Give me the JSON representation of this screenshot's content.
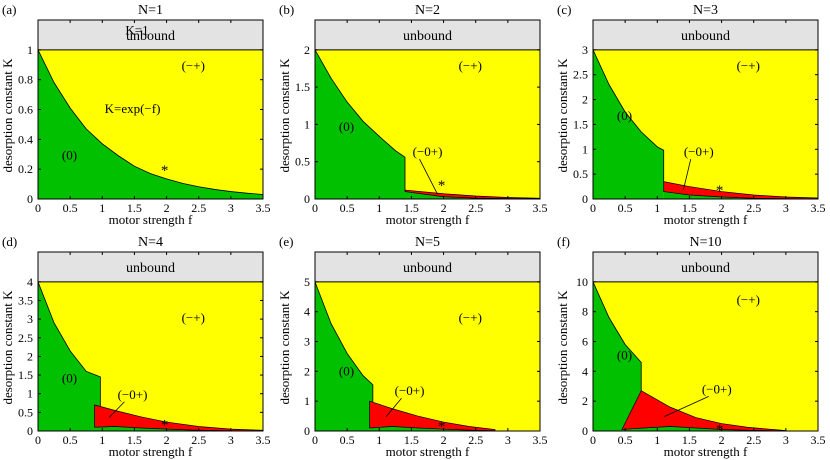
{
  "colors": {
    "unbound": "#e3e3e3",
    "minus_plus": "#ffff00",
    "zero": "#00c000",
    "minus_zero_plus": "#ff0000",
    "boundary": "#000000"
  },
  "chart_data": [
    {
      "type": "area",
      "panel_label": "(a)",
      "title": "N=1",
      "xlabel": "motor strength f",
      "ylabel": "desorption constant K",
      "xlim": [
        0,
        3.5
      ],
      "ylim": [
        0,
        1.2
      ],
      "xticks": [
        "0",
        "0.5",
        "1",
        "1.5",
        "2",
        "2.5",
        "3",
        "3.5"
      ],
      "yticks": [
        "0",
        "0.2",
        "0.4",
        "0.6",
        "0.8",
        "1"
      ],
      "ytick_values": [
        0,
        0.2,
        0.4,
        0.6,
        0.8,
        1
      ],
      "regions": [
        {
          "label": "unbound",
          "K_lower": 1
        },
        {
          "label": "(−+)"
        },
        {
          "label": "(0)",
          "boundary_f": [
            0,
            0.25,
            0.5,
            0.75,
            1,
            1.25,
            1.5,
            1.75,
            2,
            2.25,
            2.5,
            2.75,
            3,
            3.25,
            3.5
          ],
          "boundary_K": [
            1,
            0.78,
            0.61,
            0.47,
            0.37,
            0.29,
            0.22,
            0.17,
            0.135,
            0.105,
            0.082,
            0.064,
            0.05,
            0.039,
            0.03
          ]
        }
      ],
      "annotations": [
        "K=1",
        "K=exp(−f)"
      ],
      "marker": {
        "symbol": "*",
        "f": 1.97,
        "K": 0.2
      }
    },
    {
      "type": "area",
      "panel_label": "(b)",
      "title": "N=2",
      "xlabel": "motor strength f",
      "ylabel": "desorption constant K",
      "xlim": [
        0,
        3.5
      ],
      "ylim": [
        0,
        2.4
      ],
      "xticks": [
        "0",
        "0.5",
        "1",
        "1.5",
        "2",
        "2.5",
        "3",
        "3.5"
      ],
      "yticks": [
        "0",
        "0.5",
        "1",
        "1.5",
        "2"
      ],
      "ytick_values": [
        0,
        0.5,
        1,
        1.5,
        2
      ],
      "regions": [
        {
          "label": "unbound",
          "K_lower": 2
        },
        {
          "label": "(−+)"
        },
        {
          "label": "(0)",
          "boundary_f": [
            0,
            0.25,
            0.5,
            0.75,
            1,
            1.25,
            1.4,
            1.4
          ],
          "boundary_K": [
            2,
            1.62,
            1.3,
            1.04,
            0.84,
            0.65,
            0.56,
            0.12
          ]
        },
        {
          "label": "(−0+)",
          "upper_f": [
            1.4,
            2,
            2.5,
            3,
            3.5
          ],
          "upper_K": [
            0.12,
            0.07,
            0.04,
            0.02,
            0.01
          ],
          "lower_f": [
            1.4,
            2,
            2.5,
            3,
            3.5
          ],
          "lower_K": [
            0.1,
            0.03,
            0.012,
            0.005,
            0.002
          ]
        }
      ],
      "marker": {
        "symbol": "*",
        "f": 1.97,
        "K": 0.2
      }
    },
    {
      "type": "area",
      "panel_label": "(c)",
      "title": "N=3",
      "xlabel": "motor strength f",
      "ylabel": "desorption constant K",
      "xlim": [
        0,
        3.5
      ],
      "ylim": [
        0,
        3.6
      ],
      "xticks": [
        "0",
        "0.5",
        "1",
        "1.5",
        "2",
        "2.5",
        "3",
        "3.5"
      ],
      "yticks": [
        "0",
        "0.5",
        "1",
        "1.5",
        "2",
        "2.5",
        "3"
      ],
      "ytick_values": [
        0,
        0.5,
        1,
        1.5,
        2,
        2.5,
        3
      ],
      "regions": [
        {
          "label": "unbound",
          "K_lower": 3
        },
        {
          "label": "(−+)"
        },
        {
          "label": "(0)",
          "boundary_f": [
            0,
            0.25,
            0.5,
            0.75,
            1,
            1.1,
            1.1
          ],
          "boundary_K": [
            3,
            2.3,
            1.75,
            1.35,
            1.05,
            0.98,
            0.35
          ]
        },
        {
          "label": "(−0+)",
          "upper_f": [
            1.1,
            1.5,
            2,
            2.5,
            3,
            3.5
          ],
          "upper_K": [
            0.35,
            0.25,
            0.15,
            0.08,
            0.04,
            0.02
          ],
          "lower_f": [
            1.1,
            1.5,
            2,
            2.5,
            3,
            3.5
          ],
          "lower_K": [
            0.15,
            0.08,
            0.04,
            0.015,
            0.006,
            0.002
          ]
        }
      ],
      "marker": {
        "symbol": "*",
        "f": 1.97,
        "K": 0.2
      }
    },
    {
      "type": "area",
      "panel_label": "(d)",
      "title": "N=4",
      "xlabel": "motor strength f",
      "ylabel": "desorption constant K",
      "xlim": [
        0,
        3.5
      ],
      "ylim": [
        0,
        4.8
      ],
      "xticks": [
        "0",
        "0.5",
        "1",
        "1.5",
        "2",
        "2.5",
        "3",
        "3.5"
      ],
      "yticks": [
        "0",
        "0.5",
        "1",
        "1.5",
        "2",
        "2.5",
        "3",
        "3.5",
        "4"
      ],
      "ytick_values": [
        0,
        0.5,
        1,
        1.5,
        2,
        2.5,
        3,
        3.5,
        4
      ],
      "regions": [
        {
          "label": "unbound",
          "K_lower": 4
        },
        {
          "label": "(−+)"
        },
        {
          "label": "(0)",
          "boundary_f": [
            0,
            0.25,
            0.5,
            0.75,
            0.97,
            0.97
          ],
          "boundary_K": [
            4,
            2.9,
            2.15,
            1.6,
            1.45,
            0.55
          ]
        },
        {
          "label": "(−0+)",
          "upper_f": [
            0.88,
            1.2,
            1.6,
            2,
            2.5,
            3,
            3.5
          ],
          "upper_K": [
            0.7,
            0.55,
            0.38,
            0.24,
            0.12,
            0.05,
            0.02
          ],
          "lower_f": [
            0.88,
            1.2,
            1.6,
            2,
            2.5,
            3,
            3.5
          ],
          "lower_K": [
            0.1,
            0.12,
            0.08,
            0.05,
            0.02,
            0.008,
            0.003
          ]
        }
      ],
      "marker": {
        "symbol": "*",
        "f": 1.97,
        "K": 0.2
      }
    },
    {
      "type": "area",
      "panel_label": "(e)",
      "title": "N=5",
      "xlabel": "motor strength f",
      "ylabel": "desorption constant K",
      "xlim": [
        0,
        3.5
      ],
      "ylim": [
        0,
        6
      ],
      "xticks": [
        "0",
        "0.5",
        "1",
        "1.5",
        "2",
        "2.5",
        "3",
        "3.5"
      ],
      "yticks": [
        "0",
        "1",
        "2",
        "3",
        "4",
        "5"
      ],
      "ytick_values": [
        0,
        1,
        2,
        3,
        4,
        5
      ],
      "regions": [
        {
          "label": "unbound",
          "K_lower": 5
        },
        {
          "label": "(−+)"
        },
        {
          "label": "(0)",
          "boundary_f": [
            0,
            0.25,
            0.5,
            0.75,
            0.9,
            0.9
          ],
          "boundary_K": [
            5,
            3.6,
            2.6,
            1.85,
            1.55,
            0.9
          ]
        },
        {
          "label": "(−0+)",
          "upper_f": [
            0.85,
            1.2,
            1.6,
            2,
            2.4,
            2.8
          ],
          "upper_K": [
            1.0,
            0.75,
            0.5,
            0.3,
            0.15,
            0.05
          ],
          "lower_f": [
            0.85,
            1.2,
            1.6,
            2,
            2.4,
            2.8
          ],
          "lower_K": [
            0.1,
            0.15,
            0.1,
            0.06,
            0.03,
            0.01
          ]
        }
      ],
      "marker": {
        "symbol": "*",
        "f": 1.97,
        "K": 0.2
      }
    },
    {
      "type": "area",
      "panel_label": "(f)",
      "title": "N=10",
      "xlabel": "motor strength f",
      "ylabel": "desorption constant K",
      "xlim": [
        0,
        3.5
      ],
      "ylim": [
        0,
        12
      ],
      "xticks": [
        "0",
        "0.5",
        "1",
        "1.5",
        "2",
        "2.5",
        "3",
        "3.5"
      ],
      "yticks": [
        "0",
        "2",
        "4",
        "6",
        "8",
        "10"
      ],
      "ytick_values": [
        0,
        2,
        4,
        6,
        8,
        10
      ],
      "regions": [
        {
          "label": "unbound",
          "K_lower": 10
        },
        {
          "label": "(−+)"
        },
        {
          "label": "(0)",
          "boundary_f": [
            0,
            0.25,
            0.5,
            0.75,
            0.75
          ],
          "boundary_K": [
            10,
            7.6,
            5.8,
            4.6,
            2.7
          ]
        },
        {
          "label": "(−0+)",
          "upper_f": [
            0.75,
            1.2,
            1.6,
            2,
            2.4,
            2.8,
            3.0
          ],
          "upper_K": [
            2.7,
            1.6,
            0.9,
            0.5,
            0.25,
            0.1,
            0.03
          ],
          "lower_f": [
            0.45,
            0.8,
            1.2,
            1.6,
            2,
            2.4,
            2.8,
            3.0
          ],
          "lower_K": [
            0.1,
            0.2,
            0.3,
            0.2,
            0.1,
            0.05,
            0.02,
            0.01
          ]
        }
      ],
      "marker": {
        "symbol": "*",
        "f": 1.97,
        "K": 0.2
      }
    }
  ]
}
